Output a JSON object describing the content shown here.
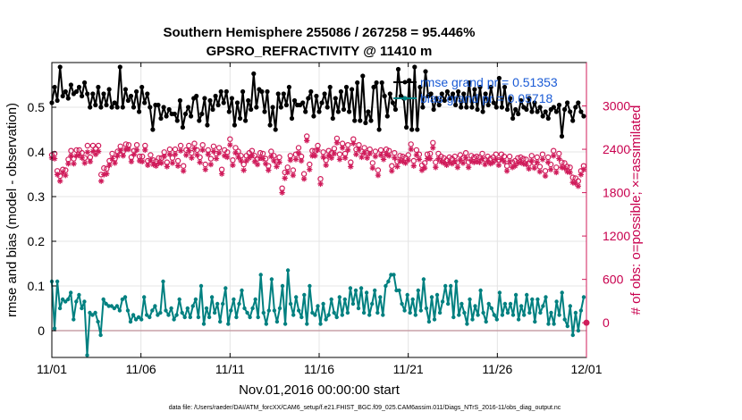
{
  "chart_data": {
    "type": "line",
    "title": "Southern Hemisphere 255086 / 267258 = 95.446%",
    "subtitle": "GPSRO_REFRACTIVITY @ 11410 m",
    "xlabel": "Nov.01,2016 00:00:00 start",
    "ylabel": "rmse and bias (model - observation)",
    "y2label": "# of obs: o=possible; ×=assimilated",
    "footnote": "data file: /Users/raeder/DAI/ATM_forcXX/CAM6_setup/f.e21.FHIST_BGC.f09_025.CAM6assim.011/Diags_NTrS_2016-11/obs_diag_output.nc",
    "xlim": [
      0,
      30
    ],
    "ylim": [
      -0.06,
      0.6
    ],
    "y2lim": [
      -480,
      3600
    ],
    "x_ticks": [
      0,
      5,
      10,
      15,
      20,
      25,
      30
    ],
    "x_tick_labels": [
      "11/01",
      "11/06",
      "11/11",
      "11/16",
      "11/21",
      "11/26",
      "12/01"
    ],
    "y_ticks": [
      0,
      0.1,
      0.2,
      0.3,
      0.4,
      0.5
    ],
    "y_tick_labels": [
      "0",
      "0.1",
      "0.2",
      "0.3",
      "0.4",
      "0.5"
    ],
    "y2_ticks": [
      0,
      600,
      1200,
      1800,
      2400,
      3000
    ],
    "y2_tick_labels": [
      "0",
      "600",
      "1200",
      "1800",
      "2400",
      "3000"
    ],
    "grid": true,
    "legend_position": "top-right",
    "legend": [
      "rmse grand pr = 0.51353",
      "bias grand pr = 0.05718"
    ],
    "colors": {
      "rmse": "#000000",
      "bias": "#008080",
      "obs": "#d01c5b",
      "legend_text": "#1a5bd6",
      "zero_line": "#c8a0a8",
      "grid": "#e4e4e4"
    },
    "series": [
      {
        "name": "rmse",
        "axis": "left",
        "marker": "star",
        "values": [
          0.51,
          0.545,
          0.515,
          0.59,
          0.525,
          0.535,
          0.52,
          0.55,
          0.53,
          0.535,
          0.545,
          0.525,
          0.555,
          0.53,
          0.5,
          0.53,
          0.505,
          0.545,
          0.5,
          0.53,
          0.505,
          0.54,
          0.5,
          0.51,
          0.5,
          0.59,
          0.5,
          0.54,
          0.515,
          0.525,
          0.5,
          0.535,
          0.49,
          0.545,
          0.51,
          0.53,
          0.5,
          0.45,
          0.505,
          0.505,
          0.475,
          0.5,
          0.48,
          0.495,
          0.485,
          0.485,
          0.47,
          0.515,
          0.455,
          0.485,
          0.5,
          0.48,
          0.52,
          0.525,
          0.47,
          0.485,
          0.52,
          0.46,
          0.515,
          0.495,
          0.525,
          0.505,
          0.535,
          0.51,
          0.535,
          0.49,
          0.52,
          0.46,
          0.51,
          0.475,
          0.535,
          0.47,
          0.515,
          0.495,
          0.575,
          0.5,
          0.54,
          0.535,
          0.49,
          0.535,
          0.46,
          0.5,
          0.45,
          0.53,
          0.5,
          0.53,
          0.505,
          0.545,
          0.475,
          0.515,
          0.505,
          0.505,
          0.51,
          0.49,
          0.52,
          0.535,
          0.48,
          0.525,
          0.49,
          0.51,
          0.53,
          0.5,
          0.545,
          0.475,
          0.52,
          0.49,
          0.535,
          0.495,
          0.545,
          0.49,
          0.54,
          0.47,
          0.555,
          0.47,
          0.57,
          0.465,
          0.49,
          0.47,
          0.545,
          0.555,
          0.45,
          0.555,
          0.525,
          0.48,
          0.53,
          0.51,
          0.495,
          0.585,
          0.525,
          0.52,
          0.455,
          0.56,
          0.45,
          0.59,
          0.45,
          0.545,
          0.5,
          0.58,
          0.525,
          0.53,
          0.495,
          0.52,
          0.505,
          0.53,
          0.515,
          0.535,
          0.52,
          0.53,
          0.505,
          0.535,
          0.5,
          0.53,
          0.5,
          0.555,
          0.5,
          0.54,
          0.495,
          0.545,
          0.49,
          0.53,
          0.505,
          0.545,
          0.51,
          0.5,
          0.565,
          0.5,
          0.545,
          0.495,
          0.52,
          0.475,
          0.495,
          0.485,
          0.515,
          0.5,
          0.495,
          0.52,
          0.49,
          0.51,
          0.49,
          0.5,
          0.48,
          0.49,
          0.475,
          0.495,
          0.5,
          0.49,
          0.505,
          0.435,
          0.495,
          0.51,
          0.49,
          0.47,
          0.5,
          0.51,
          0.49,
          0.48
        ]
      },
      {
        "name": "bias",
        "axis": "left",
        "marker": "dot",
        "values": [
          0.11,
          0.005,
          0.11,
          0.05,
          0.07,
          0.065,
          0.07,
          0.085,
          0.025,
          0.065,
          0.08,
          0.05,
          0.065,
          -0.055,
          0.04,
          0.035,
          0.04,
          0.02,
          -0.01,
          0.07,
          0.06,
          0.055,
          0.055,
          0.05,
          0.055,
          0.045,
          0.07,
          0.075,
          0.045,
          0.02,
          0.035,
          0.025,
          0.03,
          0.025,
          0.075,
          0.035,
          0.03,
          0.045,
          0.055,
          0.035,
          0.04,
          0.11,
          0.045,
          0.035,
          0.05,
          0.025,
          0.035,
          0.07,
          0.04,
          0.03,
          0.05,
          0.03,
          0.055,
          0.07,
          0.03,
          0.1,
          0.015,
          0.05,
          0.03,
          0.075,
          0.04,
          0.06,
          0.02,
          0.06,
          0.095,
          0.015,
          0.045,
          0.07,
          0.03,
          0.06,
          0.09,
          0.05,
          0.04,
          0.03,
          0.05,
          0.07,
          0.03,
          0.125,
          0.04,
          0.015,
          0.045,
          0.115,
          0.045,
          0.02,
          0.05,
          0.1,
          0.015,
          0.135,
          0.06,
          0.035,
          0.075,
          0.045,
          0.03,
          0.08,
          0.015,
          0.1,
          0.04,
          0.035,
          0.055,
          0.015,
          0.06,
          0.025,
          0.035,
          0.07,
          0.04,
          0.03,
          0.075,
          0.035,
          0.07,
          0.04,
          0.095,
          0.06,
          0.09,
          0.05,
          0.095,
          0.04,
          0.085,
          0.035,
          0.06,
          0.09,
          0.04,
          0.075,
          0.035,
          0.1,
          0.11,
          0.125,
          0.125,
          0.09,
          0.09,
          0.06,
          0.045,
          0.08,
          0.04,
          0.07,
          0.035,
          0.09,
          0.045,
          0.115,
          0.05,
          0.02,
          0.075,
          0.025,
          0.08,
          0.04,
          0.065,
          0.1,
          0.06,
          0.1,
          0.03,
          0.11,
          0.035,
          0.06,
          0.04,
          0.015,
          0.07,
          0.025,
          0.055,
          0.035,
          0.09,
          0.04,
          0.02,
          0.06,
          0.05,
          0.035,
          0.025,
          0.085,
          0.035,
          0.06,
          0.04,
          0.06,
          0.035,
          0.08,
          0.025,
          0.055,
          0.035,
          0.08,
          0.04,
          0.07,
          0.02,
          0.07,
          0.04,
          0.055,
          0.075,
          0.015,
          0.04,
          0.015,
          0.065,
          0.035,
          0.085,
          0.025,
          0.01,
          0.055,
          -0.01,
          0.04,
          0.0,
          0.045,
          0.075
        ]
      },
      {
        "name": "obs possible",
        "axis": "right",
        "marker": "circle",
        "values": [
          2320,
          2340,
          2100,
          2030,
          2120,
          2110,
          2260,
          2380,
          2270,
          2390,
          2390,
          2350,
          2280,
          2450,
          2290,
          2450,
          2410,
          2450,
          2050,
          2140,
          2130,
          2240,
          2340,
          2270,
          2370,
          2440,
          2370,
          2470,
          2460,
          2290,
          2380,
          2460,
          2300,
          2300,
          2450,
          2240,
          2320,
          2250,
          2230,
          2280,
          2280,
          2360,
          2220,
          2400,
          2280,
          2400,
          2240,
          2450,
          2170,
          2390,
          2450,
          2350,
          2480,
          2390,
          2290,
          2460,
          2190,
          2390,
          2270,
          2440,
          2340,
          2420,
          2120,
          2390,
          2360,
          2540,
          2250,
          2420,
          2370,
          2310,
          2190,
          2310,
          2350,
          2380,
          2310,
          2270,
          2350,
          2340,
          2270,
          2170,
          2370,
          2310,
          2230,
          2290,
          1860,
          2080,
          2150,
          2310,
          2110,
          2330,
          2420,
          2300,
          2060,
          2580,
          2190,
          2380,
          2380,
          2450,
          1990,
          2360,
          2250,
          2380,
          2350,
          2410,
          2550,
          2330,
          2480,
          2340,
          2460,
          2220,
          2540,
          2400,
          2460,
          2370,
          2420,
          2350,
          2400,
          2210,
          2370,
          2110,
          2390,
          2330,
          2400,
          2380,
          2170,
          2350,
          2230,
          2310,
          2300,
          2280,
          2320,
          2470,
          2240,
          2390,
          2330,
          2180,
          2210,
          2330,
          2340,
          2490,
          2220,
          2340,
          2300,
          2280,
          2250,
          2290,
          2270,
          2300,
          2220,
          2320,
          2280,
          2350,
          2220,
          2310,
          2290,
          2300,
          2290,
          2340,
          2260,
          2300,
          2270,
          2290,
          2330,
          2250,
          2330,
          2300,
          2170,
          2300,
          2220,
          2240,
          2280,
          2290,
          2270,
          2260,
          2200,
          2310,
          2210,
          2290,
          2160,
          2330,
          2100,
          2290,
          2190,
          2380,
          2150,
          2340,
          2220,
          2210,
          2160,
          2150,
          2010,
          2000,
          1960,
          2100,
          2170
        ]
      },
      {
        "name": "obs assimilated",
        "axis": "right",
        "marker": "cross",
        "values": [
          2280,
          2270,
          2050,
          1960,
          2080,
          2040,
          2200,
          2310,
          2200,
          2310,
          2320,
          2280,
          2210,
          2360,
          2230,
          2370,
          2330,
          2370,
          1960,
          2050,
          2060,
          2180,
          2270,
          2210,
          2310,
          2380,
          2310,
          2400,
          2400,
          2230,
          2330,
          2390,
          2240,
          2230,
          2390,
          2180,
          2250,
          2190,
          2170,
          2210,
          2210,
          2300,
          2160,
          2330,
          2210,
          2330,
          2170,
          2380,
          2100,
          2320,
          2380,
          2280,
          2410,
          2320,
          2220,
          2390,
          2120,
          2330,
          2190,
          2370,
          2270,
          2350,
          2060,
          2310,
          2290,
          2460,
          2180,
          2350,
          2290,
          2240,
          2110,
          2240,
          2280,
          2310,
          2230,
          2190,
          2280,
          2270,
          2200,
          2110,
          2300,
          2240,
          2160,
          2220,
          1800,
          2000,
          2080,
          2250,
          2040,
          2260,
          2350,
          2240,
          1990,
          2520,
          2120,
          2310,
          2310,
          2390,
          1920,
          2290,
          2180,
          2310,
          2280,
          2340,
          2490,
          2260,
          2420,
          2280,
          2390,
          2160,
          2480,
          2330,
          2400,
          2290,
          2350,
          2280,
          2340,
          2140,
          2300,
          2040,
          2320,
          2260,
          2330,
          2310,
          2100,
          2280,
          2160,
          2240,
          2230,
          2210,
          2250,
          2400,
          2170,
          2320,
          2260,
          2110,
          2140,
          2270,
          2270,
          2420,
          2150,
          2270,
          2230,
          2210,
          2180,
          2220,
          2200,
          2230,
          2150,
          2250,
          2210,
          2280,
          2150,
          2240,
          2220,
          2230,
          2220,
          2270,
          2190,
          2230,
          2200,
          2220,
          2260,
          2180,
          2260,
          2230,
          2100,
          2230,
          2150,
          2170,
          2210,
          2220,
          2200,
          2190,
          2130,
          2240,
          2140,
          2220,
          2090,
          2260,
          2030,
          2220,
          2120,
          2310,
          2080,
          2270,
          2150,
          2140,
          2090,
          2080,
          1940,
          1930,
          1890,
          2050,
          2120
        ]
      }
    ]
  }
}
